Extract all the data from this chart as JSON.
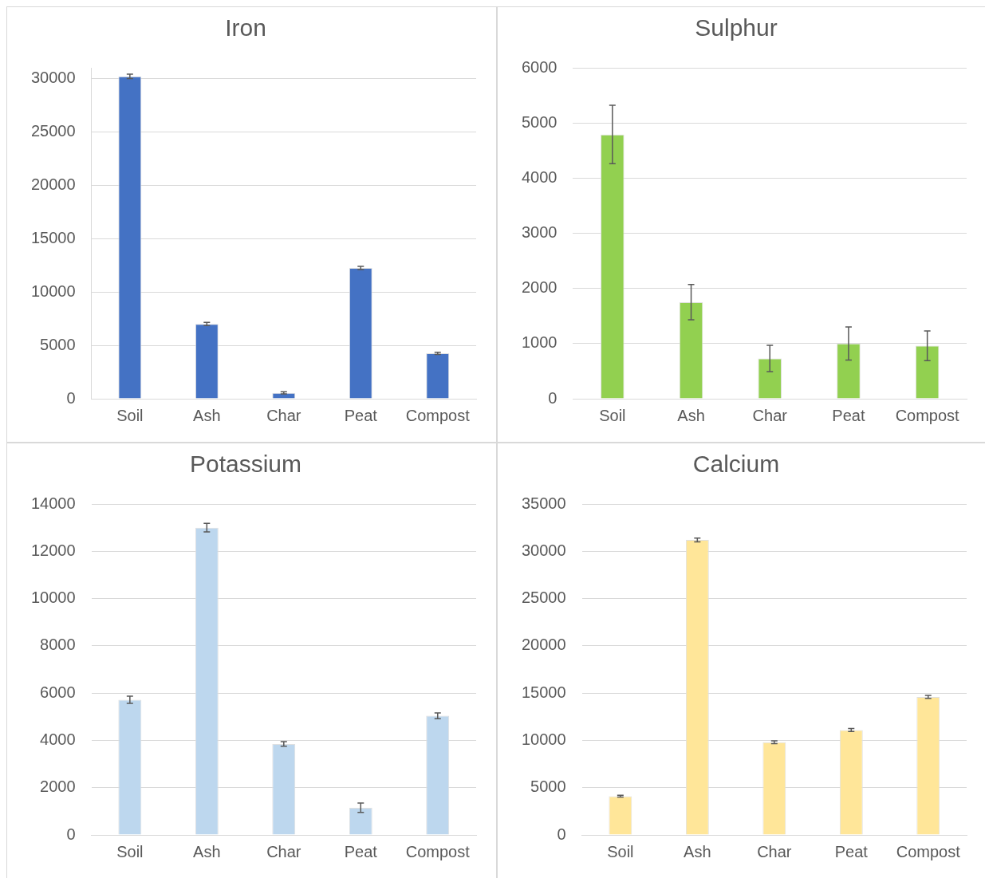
{
  "chart_data": [
    {
      "type": "bar",
      "title": "Iron",
      "categories": [
        "Soil",
        "Ash",
        "Char",
        "Peat",
        "Compost"
      ],
      "values": [
        30200,
        7000,
        550,
        12250,
        4250
      ],
      "errors": [
        200,
        150,
        100,
        150,
        100
      ],
      "color": "#4472c4",
      "ylim": [
        0,
        31000
      ],
      "yticks": [
        0,
        5000,
        10000,
        15000,
        20000,
        25000,
        30000
      ],
      "grid": "y"
    },
    {
      "type": "bar",
      "title": "Sulphur",
      "categories": [
        "Soil",
        "Ash",
        "Char",
        "Peat",
        "Compost"
      ],
      "values": [
        4790,
        1750,
        730,
        1000,
        960
      ],
      "errors": [
        530,
        320,
        240,
        300,
        270
      ],
      "color": "#92d050",
      "ylim": [
        0,
        6000
      ],
      "yticks": [
        0,
        1000,
        2000,
        3000,
        4000,
        5000,
        6000
      ],
      "grid": "y"
    },
    {
      "type": "bar",
      "title": "Potassium",
      "categories": [
        "Soil",
        "Ash",
        "Char",
        "Peat",
        "Compost"
      ],
      "values": [
        5720,
        13000,
        3850,
        1150,
        5040
      ],
      "errors": [
        150,
        180,
        100,
        200,
        120
      ],
      "color": "#bdd7ee",
      "ylim": [
        0,
        14000
      ],
      "yticks": [
        0,
        2000,
        4000,
        6000,
        8000,
        10000,
        12000,
        14000
      ],
      "grid": "y"
    },
    {
      "type": "bar",
      "title": "Calcium",
      "categories": [
        "Soil",
        "Ash",
        "Char",
        "Peat",
        "Compost"
      ],
      "values": [
        4100,
        31200,
        9800,
        11100,
        14600
      ],
      "errors": [
        100,
        200,
        150,
        150,
        150
      ],
      "color": "#ffe699",
      "ylim": [
        0,
        35000
      ],
      "yticks": [
        0,
        5000,
        10000,
        15000,
        20000,
        25000,
        30000,
        35000
      ],
      "grid": "y"
    }
  ]
}
